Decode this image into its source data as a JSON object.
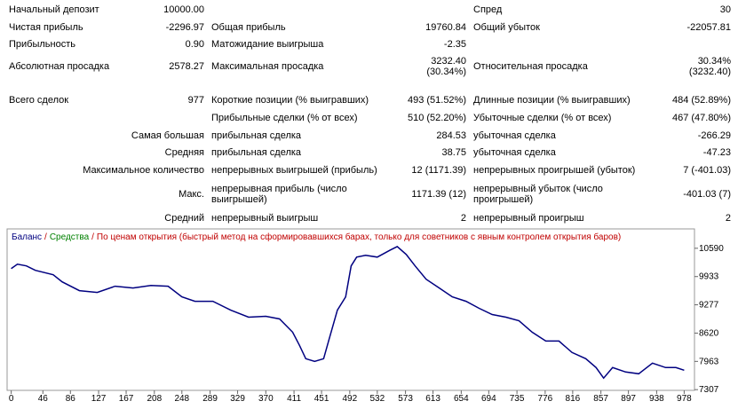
{
  "report": {
    "rows": [
      [
        "Начальный депозит",
        "10000.00",
        null,
        null,
        "Спред",
        "30"
      ],
      [
        "Чистая прибыль",
        "-2296.97",
        "Общая прибыль",
        "19760.84",
        "Общий убыток",
        "-22057.81"
      ],
      [
        "Прибыльность",
        "0.90",
        "Матожидание выигрыша",
        "-2.35",
        null,
        null
      ],
      [
        "Абсолютная просадка",
        "2578.27",
        "Максимальная просадка",
        "3232.40\n(30.34%)",
        "Относительная просадка",
        "30.34%\n(3232.40)"
      ],
      [
        "Всего сделок",
        "977",
        "Короткие позиции (% выигравших)",
        "493 (51.52%)",
        "Длинные позиции (% выигравших)",
        "484 (52.89%)"
      ],
      [
        null,
        null,
        "Прибыльные сделки (% от всех)",
        "510 (52.20%)",
        "Убыточные сделки (% от всех)",
        "467 (47.80%)"
      ],
      [
        "Самая большая",
        null,
        "прибыльная сделка",
        "284.53",
        "убыточная сделка",
        "-266.29"
      ],
      [
        "Средняя",
        null,
        "прибыльная сделка",
        "38.75",
        "убыточная сделка",
        "-47.23"
      ],
      [
        "Максимальное количество",
        null,
        "непрерывных выигрышей (прибыль)",
        "12 (1171.39)",
        "непрерывных проигрышей (убыток)",
        "7 (-401.03)"
      ],
      [
        "Макс.",
        null,
        "непрерывная прибыль (число\nвыигрышей)",
        "1171.39 (12)",
        "непрерывный убыток (число\nпроигрышей)",
        "-401.03 (7)"
      ],
      [
        "Средний",
        null,
        "непрерывный выигрыш",
        "2",
        "непрерывный проигрыш",
        "2"
      ]
    ]
  },
  "chart_data": {
    "type": "line",
    "legend": [
      {
        "text": "Баланс",
        "color": "#000080"
      },
      {
        "text": "Средства",
        "color": "#008000"
      },
      {
        "text": "По ценам открытия (быстрый метод на сформировавшихся барах, только для советников с явным контролем открытия баров)",
        "color": "#c00000"
      }
    ],
    "separator": "/",
    "x": [
      0,
      9,
      22,
      35,
      61,
      74,
      99,
      125,
      151,
      177,
      203,
      228,
      248,
      267,
      293,
      319,
      345,
      370,
      390,
      409,
      419,
      428,
      441,
      454,
      463,
      474,
      486,
      494,
      502,
      515,
      532,
      551,
      561,
      574,
      587,
      603,
      622,
      641,
      661,
      680,
      699,
      719,
      738,
      757,
      777,
      796,
      815,
      835,
      850,
      861,
      874,
      893,
      912,
      932,
      951,
      966,
      978
    ],
    "series": [
      {
        "name": "Баланс",
        "color": "#000080",
        "values": [
          10118,
          10220,
          10180,
          10077,
          9974,
          9810,
          9605,
          9564,
          9708,
          9667,
          9728,
          9708,
          9461,
          9359,
          9359,
          9153,
          8990,
          9010,
          8948,
          8641,
          8333,
          8025,
          7963,
          8025,
          8538,
          9153,
          9461,
          10180,
          10385,
          10426,
          10385,
          10549,
          10631,
          10446,
          10180,
          9872,
          9667,
          9461,
          9359,
          9195,
          9051,
          8990,
          8907,
          8641,
          8436,
          8436,
          8169,
          8025,
          7820,
          7574,
          7820,
          7717,
          7676,
          7922,
          7820,
          7820,
          7758
        ]
      }
    ],
    "xlim": [
      -6,
      993
    ],
    "ylim": [
      7290,
      11040
    ],
    "xticks": [
      0,
      46,
      86,
      127,
      167,
      208,
      248,
      289,
      329,
      370,
      411,
      451,
      492,
      532,
      573,
      613,
      654,
      694,
      735,
      776,
      816,
      857,
      897,
      938,
      978
    ],
    "yticks": [
      7307,
      7963,
      8620,
      9277,
      9933,
      10590
    ]
  }
}
